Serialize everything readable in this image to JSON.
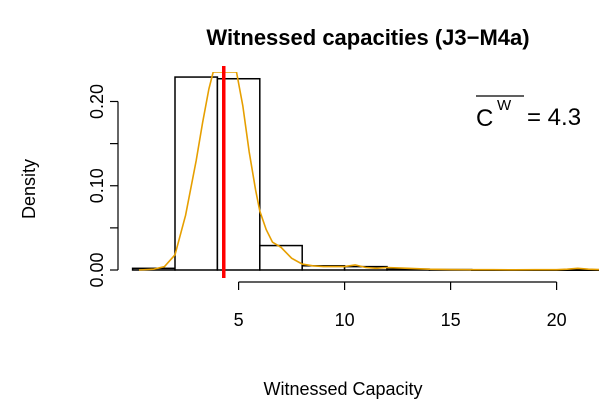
{
  "chart_data": {
    "type": "histogram",
    "title": "Witnessed capacities (J3−M4a)",
    "xlabel": "Witnessed Capacity",
    "ylabel": "Density",
    "xlim": [
      -0.5,
      22
    ],
    "ylim": [
      0,
      0.235
    ],
    "x_ticks": [
      5,
      10,
      15,
      20
    ],
    "x_tick_labels": [
      "5",
      "10",
      "15",
      "20"
    ],
    "y_ticks": [
      0.0,
      0.05,
      0.1,
      0.15,
      0.2
    ],
    "y_tick_labels": [
      "0.00",
      "",
      "0.10",
      "",
      "0.20"
    ],
    "bins": [
      {
        "x0": 0,
        "x1": 2,
        "density": 0.002
      },
      {
        "x0": 2,
        "x1": 4,
        "density": 0.229
      },
      {
        "x0": 4,
        "x1": 6,
        "density": 0.227
      },
      {
        "x0": 6,
        "x1": 8,
        "density": 0.029
      },
      {
        "x0": 8,
        "x1": 10,
        "density": 0.005
      },
      {
        "x0": 10,
        "x1": 12,
        "density": 0.004
      },
      {
        "x0": 12,
        "x1": 14,
        "density": 0.001
      },
      {
        "x0": 14,
        "x1": 16,
        "density": 0.0005
      },
      {
        "x0": 16,
        "x1": 18,
        "density": 0.0003
      },
      {
        "x0": 18,
        "x1": 20,
        "density": 0.0002
      },
      {
        "x0": 20,
        "x1": 22,
        "density": 0.0003
      }
    ],
    "density_curve": {
      "color": "#E69F00",
      "x": [
        0.3,
        1.0,
        1.5,
        2.0,
        2.5,
        3.0,
        3.3,
        3.6,
        3.8,
        4.9,
        5.2,
        5.5,
        5.8,
        6.0,
        6.3,
        6.6,
        7.0,
        7.5,
        8.0,
        8.5,
        9.0,
        9.5,
        10.0,
        10.5,
        11.0,
        11.5,
        12.0,
        13.0,
        14.0,
        15.0,
        16.0,
        17.0,
        18.0,
        19.0,
        20.0,
        20.5,
        21.0,
        21.5,
        22.0
      ],
      "y": [
        0.0,
        0.001,
        0.004,
        0.018,
        0.065,
        0.13,
        0.175,
        0.215,
        0.235,
        0.235,
        0.195,
        0.14,
        0.095,
        0.07,
        0.048,
        0.033,
        0.027,
        0.014,
        0.007,
        0.005,
        0.004,
        0.004,
        0.004,
        0.006,
        0.003,
        0.002,
        0.003,
        0.002,
        0.001,
        0.0005,
        0.0003,
        0.0003,
        0.0002,
        0.0003,
        0.0004,
        0.001,
        0.002,
        0.001,
        0.0005
      ]
    },
    "mean_line": {
      "x": 4.3,
      "color": "#FF0000"
    },
    "annotation": {
      "symbol": "C",
      "superscript": "W",
      "text": "= 4.3"
    },
    "bar_stroke": "#000000",
    "bar_fill": "#FFFFFF"
  }
}
